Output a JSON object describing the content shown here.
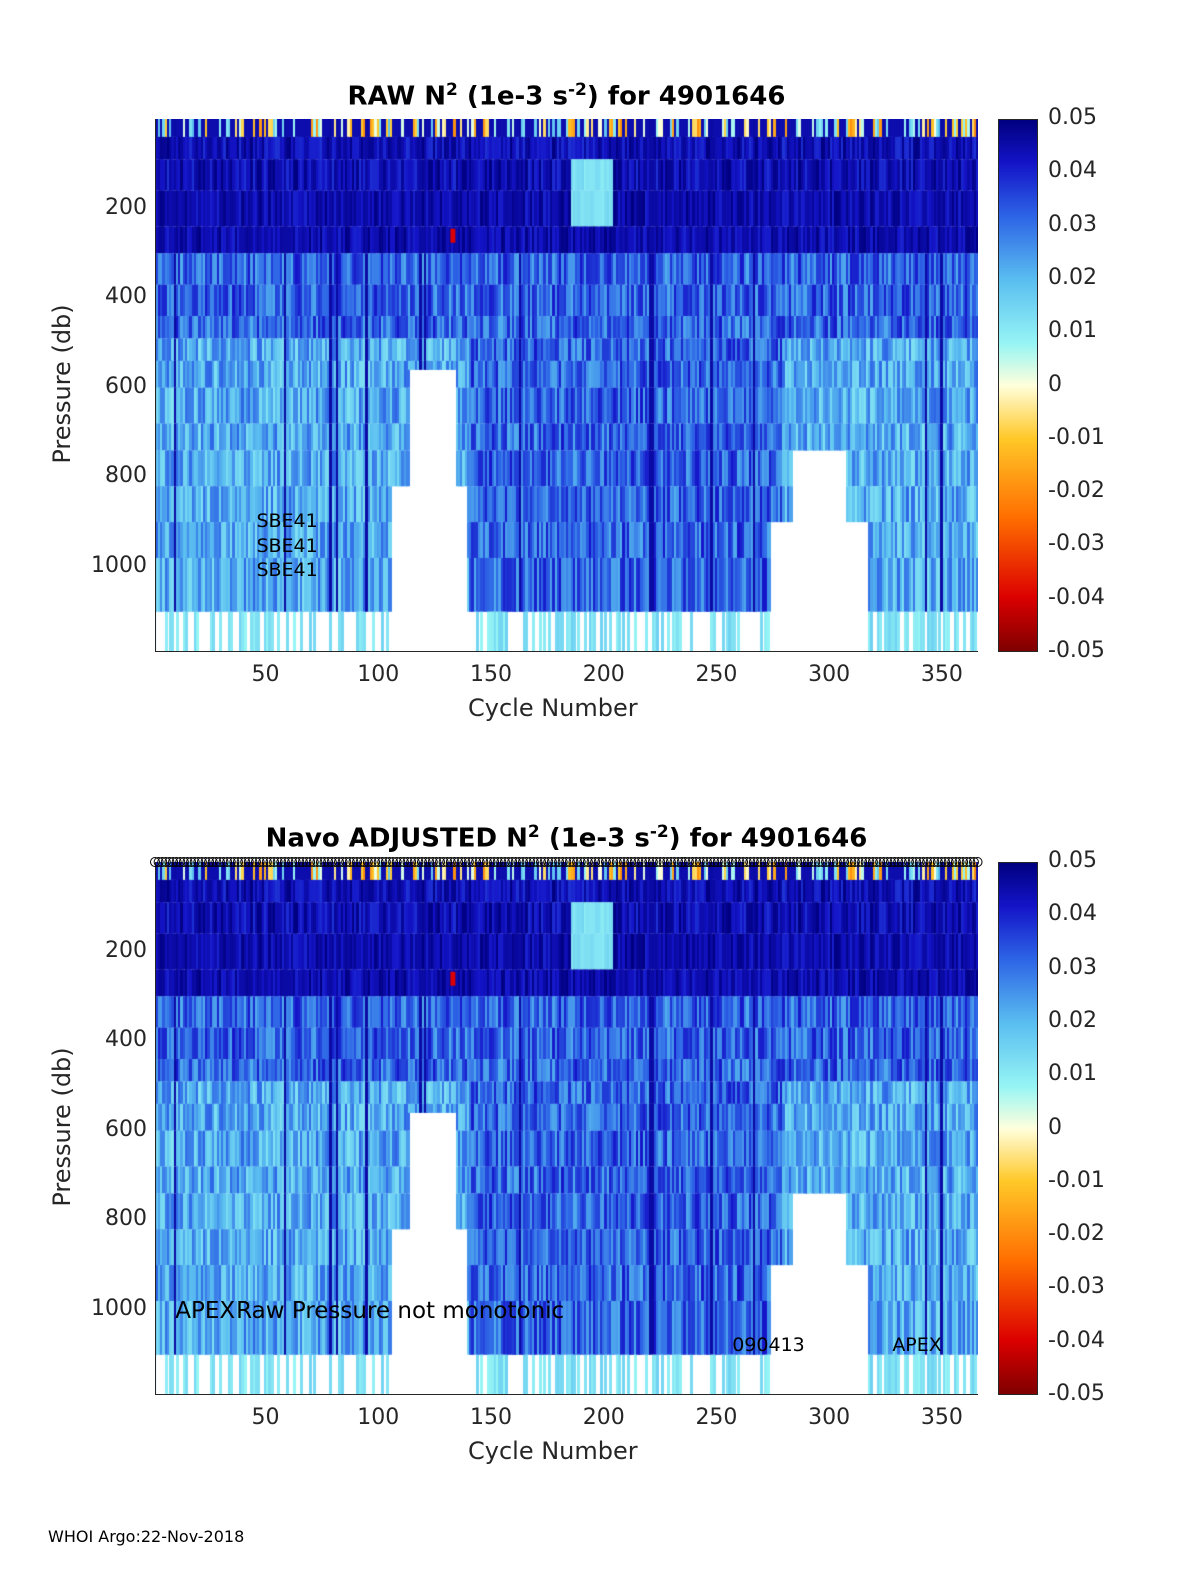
{
  "chart_data": [
    {
      "type": "heatmap",
      "title_main": "RAW N",
      "title_sup": "2",
      "title_mid": " (1e-3 s",
      "title_sup2": "-2",
      "title_end": ") for 4901646",
      "xlabel": "Cycle Number",
      "ylabel": "Pressure (db)",
      "xlim": [
        1,
        366
      ],
      "ylim": [
        1190,
        0
      ],
      "xticks": [
        "50",
        "100",
        "150",
        "200",
        "250",
        "300",
        "350"
      ],
      "yticks": [
        "200",
        "400",
        "600",
        "800",
        "1000"
      ],
      "colorbar": {
        "range": [
          -0.05,
          0.05
        ],
        "ticks": [
          "0.05",
          "0.04",
          "0.03",
          "0.02",
          "0.01",
          "0",
          "-0.01",
          "-0.02",
          "-0.03",
          "-0.04",
          "-0.05"
        ]
      },
      "annotations": [
        {
          "text": "SBE41",
          "x": 46,
          "y": 900
        },
        {
          "text": "SBE41",
          "x": 46,
          "y": 955
        },
        {
          "text": "SBE41",
          "x": 46,
          "y": 1010
        }
      ]
    },
    {
      "type": "heatmap",
      "title_main": "Navo  ADJUSTED N",
      "title_sup": "2",
      "title_mid": " (1e-3 s",
      "title_sup2": "-2",
      "title_end": ") for 4901646",
      "xlabel": "Cycle Number",
      "ylabel": "Pressure (db)",
      "xlim": [
        1,
        366
      ],
      "ylim": [
        1190,
        0
      ],
      "xticks": [
        "50",
        "100",
        "150",
        "200",
        "250",
        "300",
        "350"
      ],
      "yticks": [
        "200",
        "400",
        "600",
        "800",
        "1000"
      ],
      "colorbar": {
        "range": [
          -0.05,
          0.05
        ],
        "ticks": [
          "0.05",
          "0.04",
          "0.03",
          "0.02",
          "0.01",
          "0",
          "-0.01",
          "-0.02",
          "-0.03",
          "-0.04",
          "-0.05"
        ]
      },
      "annotations": [
        {
          "text": "APEX",
          "x": 10,
          "y": 1000,
          "size": "large"
        },
        {
          "text": "Raw Pressure not monotonic",
          "x": 37,
          "y": 1000,
          "size": "large"
        },
        {
          "text": "090413",
          "x": 257,
          "y": 1080
        },
        {
          "text": "APEX",
          "x": 328,
          "y": 1080
        }
      ]
    }
  ],
  "footer": "WHOI Argo:22-Nov-2018",
  "colors": {
    "dark_blue": "#00008f",
    "blue": "#2a5fe0",
    "light_blue": "#7fd6f0",
    "cyan": "#a8f4f4",
    "zero": "#ffffdc",
    "orange": "#ffa000",
    "red": "#d00000"
  }
}
